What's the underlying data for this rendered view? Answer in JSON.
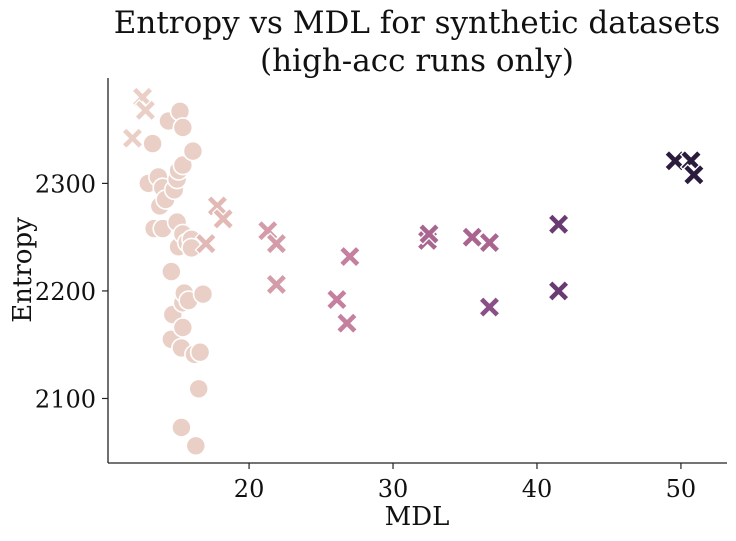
{
  "chart_data": {
    "type": "scatter",
    "title_lines": [
      "Entropy vs MDL for synthetic datasets",
      "(high-acc runs only)"
    ],
    "xlabel": "MDL",
    "ylabel": "Entropy",
    "xlim": [
      10.2,
      53.2
    ],
    "ylim": [
      2040,
      2398
    ],
    "xticks": [
      20,
      30,
      40,
      50
    ],
    "xtick_labels": [
      "20",
      "30",
      "40",
      "50"
    ],
    "yticks": [
      2100,
      2200,
      2300
    ],
    "ytick_labels": [
      "2100",
      "2200",
      "2300"
    ],
    "grid": false,
    "legend": "none",
    "colors": {
      "c1": "#eacfc6",
      "c2": "#e2b9b4",
      "c3": "#d49ca9",
      "c4": "#c4809e",
      "c5": "#a9658f",
      "c6": "#8a4f86",
      "c7": "#6a3a72",
      "c8": "#3d2550",
      "c9": "#2b1c3d"
    },
    "series": [
      {
        "marker": "circle",
        "points": [
          {
            "x": 13.0,
            "y": 2300,
            "c": "c1"
          },
          {
            "x": 13.3,
            "y": 2337,
            "c": "c1"
          },
          {
            "x": 13.4,
            "y": 2258,
            "c": "c1"
          },
          {
            "x": 13.7,
            "y": 2306,
            "c": "c1"
          },
          {
            "x": 13.8,
            "y": 2279,
            "c": "c1"
          },
          {
            "x": 14.0,
            "y": 2296,
            "c": "c1"
          },
          {
            "x": 14.0,
            "y": 2258,
            "c": "c1"
          },
          {
            "x": 14.2,
            "y": 2285,
            "c": "c1"
          },
          {
            "x": 14.4,
            "y": 2358,
            "c": "c1"
          },
          {
            "x": 14.6,
            "y": 2155,
            "c": "c1"
          },
          {
            "x": 14.6,
            "y": 2218,
            "c": "c1"
          },
          {
            "x": 14.7,
            "y": 2178,
            "c": "c1"
          },
          {
            "x": 14.8,
            "y": 2294,
            "c": "c1"
          },
          {
            "x": 15.0,
            "y": 2304,
            "c": "c1"
          },
          {
            "x": 15.0,
            "y": 2264,
            "c": "c1"
          },
          {
            "x": 15.1,
            "y": 2241,
            "c": "c1"
          },
          {
            "x": 15.1,
            "y": 2312,
            "c": "c1"
          },
          {
            "x": 15.2,
            "y": 2367,
            "c": "c1"
          },
          {
            "x": 15.3,
            "y": 2147,
            "c": "c1"
          },
          {
            "x": 15.3,
            "y": 2073,
            "c": "c1"
          },
          {
            "x": 15.4,
            "y": 2317,
            "c": "c1"
          },
          {
            "x": 15.4,
            "y": 2253,
            "c": "c1"
          },
          {
            "x": 15.4,
            "y": 2189,
            "c": "c1"
          },
          {
            "x": 15.4,
            "y": 2166,
            "c": "c1"
          },
          {
            "x": 15.4,
            "y": 2352,
            "c": "c1"
          },
          {
            "x": 15.5,
            "y": 2198,
            "c": "c1"
          },
          {
            "x": 15.7,
            "y": 2245,
            "c": "c1"
          },
          {
            "x": 15.8,
            "y": 2191,
            "c": "c1"
          },
          {
            "x": 16.0,
            "y": 2248,
            "c": "c1"
          },
          {
            "x": 16.0,
            "y": 2240,
            "c": "c1"
          },
          {
            "x": 16.1,
            "y": 2330,
            "c": "c1"
          },
          {
            "x": 16.2,
            "y": 2141,
            "c": "c1"
          },
          {
            "x": 16.3,
            "y": 2056,
            "c": "c1"
          },
          {
            "x": 16.5,
            "y": 2109,
            "c": "c1"
          },
          {
            "x": 16.6,
            "y": 2143,
            "c": "c1"
          },
          {
            "x": 16.8,
            "y": 2197,
            "c": "c1"
          }
        ]
      },
      {
        "marker": "x",
        "points": [
          {
            "x": 11.9,
            "y": 2342,
            "c": "c1"
          },
          {
            "x": 12.6,
            "y": 2380,
            "c": "c1"
          },
          {
            "x": 12.8,
            "y": 2368,
            "c": "c1"
          },
          {
            "x": 17.0,
            "y": 2244,
            "c": "c2"
          },
          {
            "x": 17.8,
            "y": 2279,
            "c": "c2"
          },
          {
            "x": 18.2,
            "y": 2267,
            "c": "c2"
          },
          {
            "x": 21.3,
            "y": 2256,
            "c": "c3"
          },
          {
            "x": 21.9,
            "y": 2244,
            "c": "c3"
          },
          {
            "x": 21.9,
            "y": 2206,
            "c": "c3"
          },
          {
            "x": 26.1,
            "y": 2192,
            "c": "c4"
          },
          {
            "x": 26.8,
            "y": 2170,
            "c": "c4"
          },
          {
            "x": 27.0,
            "y": 2232,
            "c": "c4"
          },
          {
            "x": 32.4,
            "y": 2247,
            "c": "c5"
          },
          {
            "x": 32.5,
            "y": 2253,
            "c": "c5"
          },
          {
            "x": 35.5,
            "y": 2250,
            "c": "c5"
          },
          {
            "x": 36.7,
            "y": 2245,
            "c": "c5"
          },
          {
            "x": 36.7,
            "y": 2185,
            "c": "c6"
          },
          {
            "x": 41.5,
            "y": 2262,
            "c": "c7"
          },
          {
            "x": 41.5,
            "y": 2200,
            "c": "c7"
          },
          {
            "x": 49.6,
            "y": 2321,
            "c": "c9"
          },
          {
            "x": 50.7,
            "y": 2321,
            "c": "c9"
          },
          {
            "x": 50.9,
            "y": 2308,
            "c": "c9"
          }
        ]
      }
    ]
  }
}
